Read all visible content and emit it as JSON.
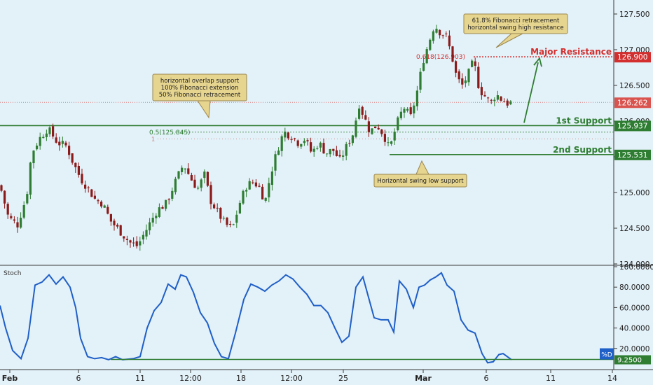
{
  "colors": {
    "background": "#e3f1f8",
    "up_candle": "#2e7d32",
    "down_candle": "#8b1a1a",
    "support_line": "#2e7d32",
    "resistance": "#d32f2f",
    "stoch_line": "#1f5fc8",
    "callout_fill": "#e6d58f",
    "callout_border": "#9a8650"
  },
  "chart_data": [
    {
      "type": "candlestick",
      "ylim": [
        124.0,
        127.6
      ],
      "y_ticks": [
        "127.500",
        "127.000",
        "126.500",
        "126.000",
        "125.500",
        "125.000",
        "124.500",
        "124.000"
      ],
      "x_ticks": [
        "Feb",
        "6",
        "11",
        "12:00",
        "18",
        "12:00",
        "25",
        "Mar",
        "6",
        "11",
        "14"
      ],
      "price_labels": [
        {
          "label": "126.900",
          "value": 126.9,
          "color": "#d32f2f"
        },
        {
          "label": "126.262",
          "value": 126.262,
          "color": "#d9534f"
        },
        {
          "label": "125.937",
          "value": 125.937,
          "color": "#2e7d32"
        },
        {
          "label": "125.531",
          "value": 125.531,
          "color": "#2e7d32"
        }
      ],
      "levels": [
        {
          "name": "Major Resistance",
          "value": 126.9
        },
        {
          "name": "1st Support",
          "value": 125.937
        },
        {
          "name": "2nd Support",
          "value": 125.531
        }
      ],
      "fib_labels": [
        {
          "label": "0.618(126.903)",
          "value": 126.903
        },
        {
          "label": "0.5(125.845)",
          "value": 125.845
        },
        {
          "label": "1",
          "value": 125.75
        }
      ],
      "annotations": [
        {
          "lines": [
            "horizontal overlap support",
            "100% Fibonacci extension",
            "50% Fibonacci retracement"
          ]
        },
        {
          "lines": [
            "61.8% Fibonacci retracement",
            "horizontal swing high resistance"
          ]
        },
        {
          "lines": [
            "Horizontal swing low support"
          ]
        }
      ],
      "close_path": [
        [
          0,
          125.1
        ],
        [
          12,
          124.65
        ],
        [
          25,
          124.55
        ],
        [
          38,
          124.95
        ],
        [
          45,
          125.55
        ],
        [
          56,
          125.75
        ],
        [
          68,
          125.9
        ],
        [
          82,
          125.7
        ],
        [
          95,
          125.65
        ],
        [
          105,
          125.4
        ],
        [
          115,
          125.2
        ],
        [
          126,
          125.05
        ],
        [
          136,
          124.9
        ],
        [
          146,
          124.85
        ],
        [
          158,
          124.6
        ],
        [
          172,
          124.45
        ],
        [
          185,
          124.3
        ],
        [
          196,
          124.25
        ],
        [
          210,
          124.5
        ],
        [
          224,
          124.75
        ],
        [
          238,
          124.85
        ],
        [
          248,
          125.1
        ],
        [
          262,
          125.4
        ],
        [
          272,
          125.2
        ],
        [
          282,
          125.05
        ],
        [
          292,
          125.25
        ],
        [
          300,
          124.9
        ],
        [
          312,
          124.7
        ],
        [
          322,
          124.55
        ],
        [
          332,
          124.5
        ],
        [
          342,
          124.85
        ],
        [
          352,
          125.1
        ],
        [
          362,
          125.15
        ],
        [
          372,
          125.05
        ],
        [
          378,
          124.85
        ],
        [
          386,
          125.25
        ],
        [
          396,
          125.6
        ],
        [
          405,
          125.85
        ],
        [
          415,
          125.8
        ],
        [
          425,
          125.7
        ],
        [
          435,
          125.75
        ],
        [
          445,
          125.55
        ],
        [
          455,
          125.7
        ],
        [
          465,
          125.55
        ],
        [
          475,
          125.6
        ],
        [
          485,
          125.45
        ],
        [
          495,
          125.65
        ],
        [
          505,
          125.85
        ],
        [
          512,
          126.25
        ],
        [
          520,
          126.05
        ],
        [
          528,
          125.85
        ],
        [
          538,
          125.95
        ],
        [
          548,
          125.8
        ],
        [
          556,
          125.6
        ],
        [
          566,
          125.95
        ],
        [
          576,
          126.2
        ],
        [
          586,
          126.05
        ],
        [
          595,
          126.4
        ],
        [
          604,
          126.85
        ],
        [
          612,
          127.1
        ],
        [
          620,
          127.35
        ],
        [
          628,
          127.25
        ],
        [
          636,
          127.2
        ],
        [
          644,
          126.95
        ],
        [
          652,
          126.6
        ],
        [
          660,
          126.5
        ],
        [
          668,
          126.65
        ],
        [
          676,
          126.85
        ],
        [
          684,
          126.45
        ],
        [
          692,
          126.35
        ],
        [
          700,
          126.25
        ],
        [
          708,
          126.38
        ],
        [
          716,
          126.3
        ],
        [
          724,
          126.25
        ],
        [
          730,
          126.26
        ]
      ]
    },
    {
      "type": "line",
      "title": "Stoch",
      "ylim": [
        0,
        100
      ],
      "y_ticks": [
        "100.0000",
        "80.0000",
        "60.0000",
        "40.0000",
        "20.0000"
      ],
      "value_label": "%D",
      "last_value_label": "9.2500",
      "reference_value": 9.25,
      "series": [
        {
          "values": [
            [
              0,
              62
            ],
            [
              8,
              40
            ],
            [
              18,
              18
            ],
            [
              30,
              10
            ],
            [
              40,
              30
            ],
            [
              50,
              82
            ],
            [
              60,
              85
            ],
            [
              70,
              92
            ],
            [
              80,
              83
            ],
            [
              90,
              90
            ],
            [
              100,
              80
            ],
            [
              108,
              60
            ],
            [
              115,
              30
            ],
            [
              125,
              12
            ],
            [
              135,
              10
            ],
            [
              145,
              11
            ],
            [
              155,
              9
            ],
            [
              165,
              12
            ],
            [
              175,
              9
            ],
            [
              190,
              10
            ],
            [
              200,
              12
            ],
            [
              210,
              40
            ],
            [
              220,
              57
            ],
            [
              230,
              65
            ],
            [
              240,
              83
            ],
            [
              250,
              78
            ],
            [
              258,
              92
            ],
            [
              266,
              90
            ],
            [
              276,
              75
            ],
            [
              286,
              55
            ],
            [
              296,
              45
            ],
            [
              306,
              25
            ],
            [
              316,
              12
            ],
            [
              326,
              10
            ],
            [
              336,
              35
            ],
            [
              348,
              68
            ],
            [
              358,
              83
            ],
            [
              368,
              80
            ],
            [
              378,
              76
            ],
            [
              388,
              82
            ],
            [
              398,
              86
            ],
            [
              408,
              92
            ],
            [
              418,
              88
            ],
            [
              428,
              80
            ],
            [
              438,
              73
            ],
            [
              448,
              62
            ],
            [
              458,
              62
            ],
            [
              468,
              55
            ],
            [
              478,
              40
            ],
            [
              488,
              26
            ],
            [
              498,
              32
            ],
            [
              508,
              80
            ],
            [
              518,
              90
            ],
            [
              526,
              70
            ],
            [
              534,
              50
            ],
            [
              544,
              48
            ],
            [
              554,
              48
            ],
            [
              562,
              36
            ],
            [
              570,
              86
            ],
            [
              580,
              78
            ],
            [
              590,
              60
            ],
            [
              598,
              80
            ],
            [
              606,
              82
            ],
            [
              614,
              87
            ],
            [
              622,
              90
            ],
            [
              630,
              94
            ],
            [
              638,
              82
            ],
            [
              648,
              76
            ],
            [
              658,
              48
            ],
            [
              668,
              38
            ],
            [
              678,
              35
            ],
            [
              688,
              15
            ],
            [
              696,
              6
            ],
            [
              704,
              7
            ],
            [
              712,
              14
            ],
            [
              718,
              15
            ],
            [
              724,
              12
            ],
            [
              730,
              9
            ]
          ]
        }
      ]
    }
  ]
}
